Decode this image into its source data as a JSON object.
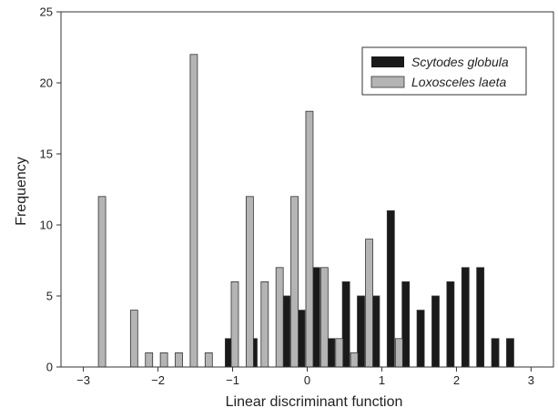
{
  "chart_data": {
    "type": "bar",
    "xlabel": "Linear discriminant function",
    "ylabel": "Frequency",
    "xlim": [
      -3,
      3
    ],
    "ylim": [
      0,
      25
    ],
    "xticks": [
      "−3",
      "−2",
      "−1",
      "0",
      "1",
      "2",
      "3"
    ],
    "yticks": [
      "0",
      "5",
      "10",
      "15",
      "20",
      "25"
    ],
    "grid": false,
    "legend_position": "top-right",
    "series": [
      {
        "name": "Scytodes globula",
        "color": "#1a1a1a",
        "x": [
          -1.05,
          -0.72,
          -0.28,
          -0.08,
          0.12,
          0.32,
          0.52,
          0.72,
          0.92,
          1.12,
          1.32,
          1.52,
          1.72,
          1.92,
          2.12,
          2.32,
          2.52,
          2.72
        ],
        "values": [
          2,
          2,
          5,
          4,
          7,
          2,
          6,
          5,
          5,
          11,
          6,
          4,
          5,
          6,
          7,
          7,
          2,
          2
        ]
      },
      {
        "name": "Loxosceles laeta",
        "color": "#b4b4b4",
        "x": [
          -2.75,
          -2.32,
          -2.12,
          -1.92,
          -1.72,
          -1.52,
          -1.32,
          -0.97,
          -0.77,
          -0.57,
          -0.37,
          -0.17,
          0.03,
          0.23,
          0.43,
          0.63,
          0.83,
          1.23
        ],
        "values": [
          12,
          4,
          1,
          1,
          1,
          22,
          1,
          6,
          12,
          6,
          7,
          12,
          18,
          7,
          2,
          1,
          9,
          2
        ]
      }
    ]
  }
}
